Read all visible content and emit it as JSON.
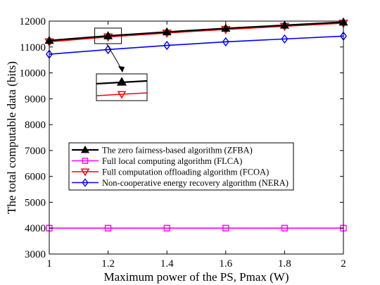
{
  "chart_data": {
    "type": "line",
    "title": "",
    "xlabel": "Maximum power of the PS, Pmax (W)",
    "ylabel": "The total computable data (bits)",
    "xlim": [
      1,
      2
    ],
    "ylim": [
      3000,
      12000
    ],
    "xticks": [
      "1",
      "1.2",
      "1.4",
      "1.6",
      "1.8",
      "2"
    ],
    "yticks": [
      "3000",
      "4000",
      "5000",
      "6000",
      "7000",
      "8000",
      "9000",
      "10000",
      "11000",
      "12000"
    ],
    "x": [
      1,
      1.2,
      1.4,
      1.6,
      1.8,
      2
    ],
    "grid": false,
    "legend_position": "center-left",
    "series": [
      {
        "name": "The zero fairness-based algorithm (ZFBA)",
        "color": "#000000",
        "marker": "triangle-up",
        "values": [
          11250,
          11430,
          11580,
          11720,
          11840,
          11960
        ]
      },
      {
        "name": "Full local computing algorithm (FLCA)",
        "color": "#ff00ff",
        "marker": "square",
        "values": [
          4000,
          4000,
          4000,
          4000,
          4000,
          4000
        ]
      },
      {
        "name": "Full computation offloading algorithm (FCOA)",
        "color": "#ff0000",
        "marker": "triangle-down",
        "values": [
          11200,
          11390,
          11540,
          11680,
          11800,
          11920
        ]
      },
      {
        "name": "Non-cooperative energy recovery algorithm (NERA)",
        "color": "#0000ff",
        "marker": "diamond",
        "values": [
          10720,
          10900,
          11060,
          11200,
          11310,
          11420
        ]
      }
    ],
    "annotation": "zoomed inset of x = 1.2 region"
  }
}
